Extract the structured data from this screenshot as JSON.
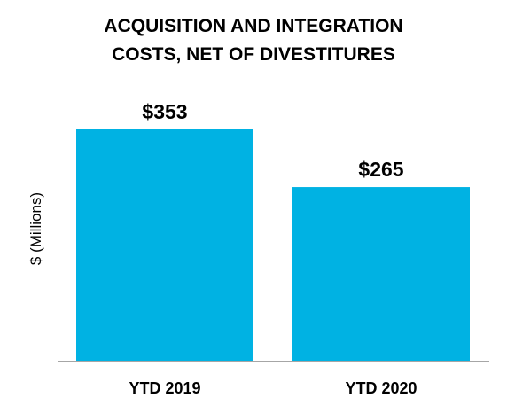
{
  "chart_data": {
    "type": "bar",
    "title_lines": [
      "ACQUISITION AND INTEGRATION",
      "COSTS, NET OF DIVESTITURES"
    ],
    "xlabel": "",
    "ylabel": "$ (Millions)",
    "categories": [
      "YTD 2019",
      "YTD 2020"
    ],
    "values": [
      353,
      265
    ],
    "data_labels": [
      "$353",
      "$265"
    ],
    "ylim": [
      0,
      353
    ],
    "grid": false,
    "legend": "none",
    "bar_color": "#00B2E3",
    "axis_color": "#A6A6A6"
  }
}
